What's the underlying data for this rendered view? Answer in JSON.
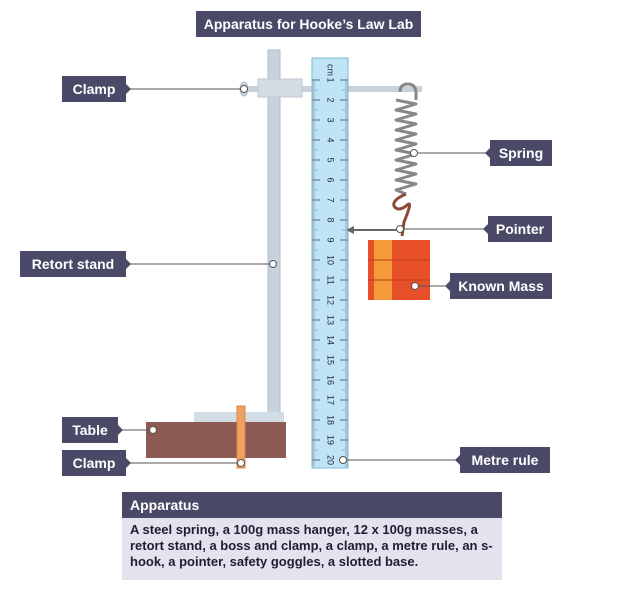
{
  "title": "Apparatus for Hooke’s Law Lab",
  "labels": {
    "clamp_top": "Clamp",
    "retort_stand": "Retort stand",
    "table": "Table",
    "clamp_bottom": "Clamp",
    "spring": "Spring",
    "pointer": "Pointer",
    "known_mass": "Known Mass",
    "metre_rule": "Metre rule"
  },
  "ruler": {
    "unit": "cm",
    "tick_labels": [
      "1",
      "2",
      "3",
      "4",
      "5",
      "6",
      "7",
      "8",
      "9",
      "10",
      "11",
      "12",
      "13",
      "14",
      "15",
      "16",
      "17",
      "18",
      "19",
      "20"
    ]
  },
  "apparatus": {
    "heading": "Apparatus",
    "text": "A steel spring, a 100g mass hanger, 12 x 100g masses, a retort stand, a boss and clamp, a clamp, a metre rule, an s-hook, a pointer, safety goggles, a slotted base."
  },
  "colors": {
    "label_bg": "#4a4a68",
    "ruler": "#bfe4f6",
    "stand": "#c8d2dc",
    "table": "#8c5a52",
    "clamp_orange": "#f0a060",
    "mass_red": "#e8502a",
    "mass_orange": "#f59a3a",
    "spring": "#888888",
    "leader_line": "#555555"
  }
}
